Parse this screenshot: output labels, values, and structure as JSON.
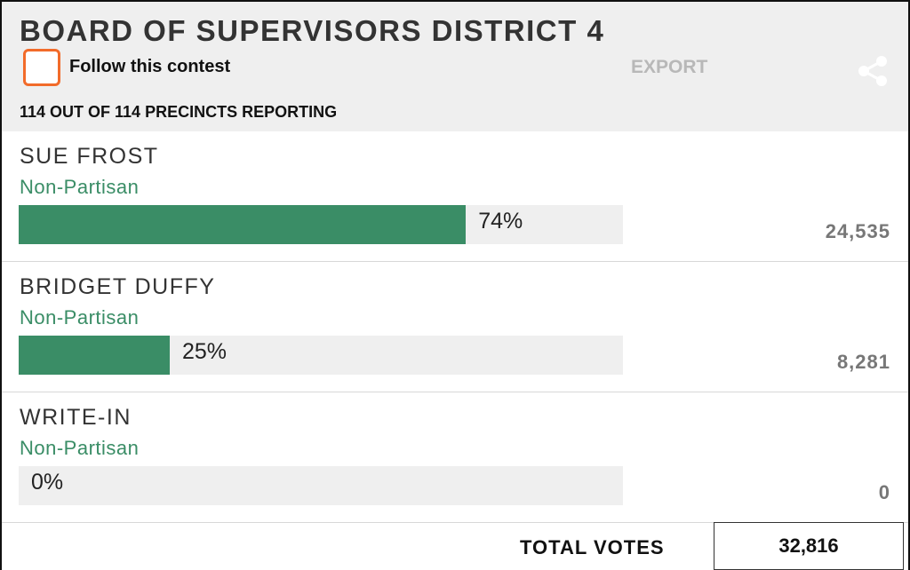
{
  "header": {
    "title": "BOARD OF SUPERVISORS DISTRICT 4",
    "follow_label": "Follow this contest",
    "export_label": "EXPORT",
    "precincts": "114 OUT OF 114 PRECINCTS REPORTING"
  },
  "candidates": [
    {
      "name": "SUE FROST",
      "party": "Non-Partisan",
      "percent": 74,
      "percent_label": "74%",
      "votes": "24,535"
    },
    {
      "name": "BRIDGET DUFFY",
      "party": "Non-Partisan",
      "percent": 25,
      "percent_label": "25%",
      "votes": "8,281"
    },
    {
      "name": "WRITE-IN",
      "party": "Non-Partisan",
      "percent": 0,
      "percent_label": "0%",
      "votes": "0"
    }
  ],
  "footer": {
    "total_label": "TOTAL VOTES",
    "total_value": "32,816"
  }
}
